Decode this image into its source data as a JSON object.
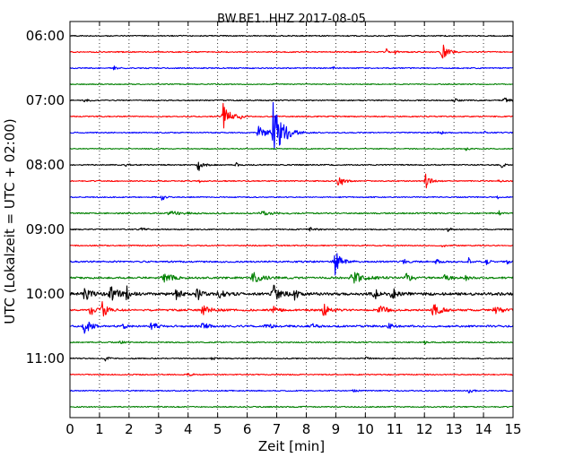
{
  "chart_data": {
    "type": "line",
    "title": "BW.BE1..HHZ 2017-08-05",
    "xlabel": "Zeit  [min]",
    "ylabel": "UTC (Lokalzeit = UTC + 02:00)",
    "xlim": [
      0,
      15
    ],
    "x_ticks": [
      0,
      1,
      2,
      3,
      4,
      5,
      6,
      7,
      8,
      9,
      10,
      11,
      12,
      13,
      14,
      15
    ],
    "y_tick_labels": [
      "06:00",
      "07:00",
      "08:00",
      "09:00",
      "10:00",
      "11:00"
    ],
    "grid": true,
    "row_interval_minutes": 15,
    "row_colors_cycle": [
      "#000000",
      "#ff0000",
      "#0000ff",
      "#008000"
    ],
    "rows": [
      {
        "start": "06:00",
        "color": "#000000",
        "noise": 0.6,
        "events": []
      },
      {
        "start": "06:15",
        "color": "#ff0000",
        "noise": 0.6,
        "events": [
          {
            "t": 10.7,
            "amp": 5,
            "dur": 0.1
          },
          {
            "t": 11.0,
            "amp": 5,
            "dur": 0.1
          },
          {
            "t": 12.6,
            "amp": 10,
            "dur": 0.35
          }
        ]
      },
      {
        "start": "06:30",
        "color": "#0000ff",
        "noise": 0.6,
        "events": [
          {
            "t": 1.5,
            "amp": 3,
            "dur": 0.2
          },
          {
            "t": 8.9,
            "amp": 4,
            "dur": 0.1
          }
        ]
      },
      {
        "start": "06:45",
        "color": "#008000",
        "noise": 0.5,
        "events": []
      },
      {
        "start": "07:00",
        "color": "#000000",
        "noise": 0.6,
        "events": [
          {
            "t": 0.5,
            "amp": 2,
            "dur": 0.2
          },
          {
            "t": 13.0,
            "amp": 2,
            "dur": 0.3
          },
          {
            "t": 14.7,
            "amp": 3,
            "dur": 0.3
          }
        ]
      },
      {
        "start": "07:15",
        "color": "#ff0000",
        "noise": 0.6,
        "events": [
          {
            "t": 5.2,
            "amp": 17,
            "dur": 0.4
          },
          {
            "t": 5.75,
            "amp": 4,
            "dur": 0.15
          }
        ]
      },
      {
        "start": "07:30",
        "color": "#0000ff",
        "noise": 0.6,
        "events": [
          {
            "t": 6.9,
            "amp": 42,
            "dur": 0.55
          },
          {
            "t": 6.4,
            "amp": 8,
            "dur": 0.45
          },
          {
            "t": 12.5,
            "amp": 2,
            "dur": 0.3
          },
          {
            "t": 14.0,
            "amp": 3,
            "dur": 0.1
          }
        ]
      },
      {
        "start": "07:45",
        "color": "#008000",
        "noise": 0.5,
        "events": [
          {
            "t": 13.4,
            "amp": 2,
            "dur": 0.2
          }
        ]
      },
      {
        "start": "08:00",
        "color": "#000000",
        "noise": 0.6,
        "events": [
          {
            "t": 1.9,
            "amp": 3,
            "dur": 0.15
          },
          {
            "t": 4.35,
            "amp": 8,
            "dur": 0.3
          },
          {
            "t": 5.6,
            "amp": 3,
            "dur": 0.2
          },
          {
            "t": 14.6,
            "amp": 5,
            "dur": 0.15
          }
        ]
      },
      {
        "start": "08:15",
        "color": "#ff0000",
        "noise": 0.6,
        "events": [
          {
            "t": 4.4,
            "amp": 2,
            "dur": 0.2
          },
          {
            "t": 9.1,
            "amp": 7,
            "dur": 0.35
          },
          {
            "t": 12.05,
            "amp": 11,
            "dur": 0.3
          },
          {
            "t": 14.5,
            "amp": 2,
            "dur": 0.2
          }
        ]
      },
      {
        "start": "08:30",
        "color": "#0000ff",
        "noise": 0.6,
        "events": [
          {
            "t": 3.1,
            "amp": 5,
            "dur": 0.2
          },
          {
            "t": 14.45,
            "amp": 3,
            "dur": 0.1
          }
        ]
      },
      {
        "start": "08:45",
        "color": "#008000",
        "noise": 0.7,
        "events": [
          {
            "t": 3.4,
            "amp": 2,
            "dur": 0.8
          },
          {
            "t": 6.5,
            "amp": 2,
            "dur": 0.8
          },
          {
            "t": 14.5,
            "amp": 15,
            "dur": 0.05
          }
        ]
      },
      {
        "start": "09:00",
        "color": "#000000",
        "noise": 0.6,
        "events": [
          {
            "t": 2.4,
            "amp": 2,
            "dur": 0.3
          },
          {
            "t": 8.1,
            "amp": 2,
            "dur": 0.4
          },
          {
            "t": 12.8,
            "amp": 2,
            "dur": 0.3
          }
        ]
      },
      {
        "start": "09:15",
        "color": "#ff0000",
        "noise": 0.6,
        "events": [
          {
            "t": 12.6,
            "amp": 2,
            "dur": 0.3
          }
        ]
      },
      {
        "start": "09:30",
        "color": "#0000ff",
        "noise": 0.9,
        "events": [
          {
            "t": 8.95,
            "amp": 20,
            "dur": 0.35
          },
          {
            "t": 11.3,
            "amp": 3,
            "dur": 0.2
          },
          {
            "t": 12.4,
            "amp": 4,
            "dur": 0.15
          },
          {
            "t": 13.5,
            "amp": 4,
            "dur": 0.15
          },
          {
            "t": 14.1,
            "amp": 5,
            "dur": 0.15
          },
          {
            "t": 14.8,
            "amp": 4,
            "dur": 0.15
          }
        ]
      },
      {
        "start": "09:45",
        "color": "#008000",
        "noise": 1.0,
        "events": [
          {
            "t": 3.2,
            "amp": 5,
            "dur": 0.6
          },
          {
            "t": 6.2,
            "amp": 6,
            "dur": 0.6
          },
          {
            "t": 9.6,
            "amp": 6,
            "dur": 0.8
          },
          {
            "t": 11.4,
            "amp": 5,
            "dur": 0.4
          },
          {
            "t": 12.7,
            "amp": 6,
            "dur": 0.3
          },
          {
            "t": 13.4,
            "amp": 3,
            "dur": 0.3
          }
        ]
      },
      {
        "start": "10:00",
        "color": "#000000",
        "noise": 1.5,
        "events": [
          {
            "t": 0.5,
            "amp": 7,
            "dur": 0.5
          },
          {
            "t": 1.4,
            "amp": 7,
            "dur": 0.6
          },
          {
            "t": 1.9,
            "amp": 10,
            "dur": 0.15
          },
          {
            "t": 3.6,
            "amp": 8,
            "dur": 0.25
          },
          {
            "t": 4.3,
            "amp": 7,
            "dur": 0.4
          },
          {
            "t": 5.0,
            "amp": 5,
            "dur": 0.4
          },
          {
            "t": 6.9,
            "amp": 9,
            "dur": 0.5
          },
          {
            "t": 7.6,
            "amp": 7,
            "dur": 0.2
          },
          {
            "t": 10.3,
            "amp": 6,
            "dur": 0.3
          },
          {
            "t": 10.9,
            "amp": 7,
            "dur": 0.4
          }
        ]
      },
      {
        "start": "10:15",
        "color": "#ff0000",
        "noise": 1.0,
        "events": [
          {
            "t": 0.7,
            "amp": 6,
            "dur": 0.3
          },
          {
            "t": 1.1,
            "amp": 9,
            "dur": 0.4
          },
          {
            "t": 4.5,
            "amp": 5,
            "dur": 0.5
          },
          {
            "t": 6.9,
            "amp": 4,
            "dur": 0.3
          },
          {
            "t": 8.6,
            "amp": 7,
            "dur": 0.4
          },
          {
            "t": 10.5,
            "amp": 5,
            "dur": 0.5
          },
          {
            "t": 12.3,
            "amp": 7,
            "dur": 0.5
          },
          {
            "t": 14.4,
            "amp": 4,
            "dur": 0.5
          }
        ]
      },
      {
        "start": "10:30",
        "color": "#0000ff",
        "noise": 1.0,
        "events": [
          {
            "t": 0.5,
            "amp": 8,
            "dur": 0.4
          },
          {
            "t": 1.8,
            "amp": 4,
            "dur": 0.2
          },
          {
            "t": 2.75,
            "amp": 7,
            "dur": 0.3
          },
          {
            "t": 4.5,
            "amp": 4,
            "dur": 0.4
          },
          {
            "t": 6.6,
            "amp": 5,
            "dur": 0.3
          },
          {
            "t": 8.2,
            "amp": 3,
            "dur": 0.3
          },
          {
            "t": 10.8,
            "amp": 3,
            "dur": 0.3
          }
        ]
      },
      {
        "start": "10:45",
        "color": "#008000",
        "noise": 0.6,
        "events": [
          {
            "t": 1.7,
            "amp": 2,
            "dur": 0.3
          },
          {
            "t": 12.0,
            "amp": 3,
            "dur": 0.1
          }
        ]
      },
      {
        "start": "11:00",
        "color": "#000000",
        "noise": 0.6,
        "events": [
          {
            "t": 1.2,
            "amp": 5,
            "dur": 0.15
          },
          {
            "t": 4.8,
            "amp": 2,
            "dur": 0.2
          },
          {
            "t": 10.0,
            "amp": 2,
            "dur": 0.2
          }
        ]
      },
      {
        "start": "11:15",
        "color": "#ff0000",
        "noise": 0.6,
        "events": [
          {
            "t": 4.0,
            "amp": 2,
            "dur": 0.3
          }
        ]
      },
      {
        "start": "11:30",
        "color": "#0000ff",
        "noise": 0.6,
        "events": [
          {
            "t": 9.6,
            "amp": 2,
            "dur": 0.2
          },
          {
            "t": 13.5,
            "amp": 2,
            "dur": 0.3
          }
        ]
      },
      {
        "start": "11:45",
        "color": "#008000",
        "noise": 0.6,
        "events": []
      }
    ]
  }
}
